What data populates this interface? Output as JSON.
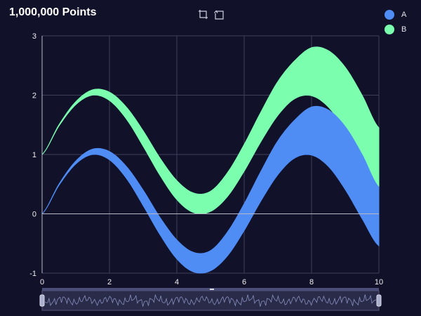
{
  "title": "1,000,000 Points",
  "toolbox": [
    {
      "icon": "zoom-select-icon"
    },
    {
      "icon": "zoom-reset-icon"
    }
  ],
  "legend": [
    {
      "label": "A",
      "color": "#4f8df5"
    },
    {
      "label": "B",
      "color": "#7bffaf"
    }
  ],
  "chart_data": {
    "type": "area",
    "title": "1,000,000 Points",
    "xlim": [
      0,
      10
    ],
    "ylim": [
      -1,
      3
    ],
    "x_ticks": [
      "0",
      "2",
      "4",
      "6",
      "8",
      "10"
    ],
    "y_ticks": [
      "-1",
      "0",
      "1",
      "2",
      "3"
    ],
    "grid": true,
    "legend_position": "top-right",
    "x": [
      0,
      0.5,
      1,
      1.5,
      2,
      2.5,
      3,
      3.5,
      4,
      4.5,
      5,
      5.5,
      6,
      6.5,
      7,
      7.5,
      8,
      8.5,
      9,
      9.5,
      10
    ],
    "series": [
      {
        "name": "A",
        "color": "#4f8df5",
        "lower": [
          0,
          0.48,
          0.84,
          1.0,
          0.91,
          0.6,
          0.14,
          -0.35,
          -0.76,
          -0.98,
          -0.96,
          -0.71,
          -0.28,
          0.22,
          0.66,
          0.94,
          0.99,
          0.8,
          0.41,
          -0.08,
          -0.54
        ],
        "upper": [
          0,
          0.5,
          0.89,
          1.09,
          1.05,
          0.8,
          0.4,
          -0.06,
          -0.44,
          -0.65,
          -0.62,
          -0.31,
          0.17,
          0.72,
          1.23,
          1.58,
          1.8,
          1.75,
          1.47,
          1.0,
          0.45
        ]
      },
      {
        "name": "B",
        "color": "#7bffaf",
        "lower": [
          1,
          1.48,
          1.84,
          2.0,
          1.91,
          1.6,
          1.14,
          0.65,
          0.24,
          0.02,
          0.04,
          0.29,
          0.72,
          1.22,
          1.66,
          1.94,
          1.99,
          1.8,
          1.41,
          0.92,
          0.46
        ],
        "upper": [
          1,
          1.5,
          1.89,
          2.09,
          2.05,
          1.8,
          1.4,
          0.94,
          0.56,
          0.35,
          0.38,
          0.69,
          1.17,
          1.72,
          2.23,
          2.58,
          2.8,
          2.75,
          2.47,
          2.0,
          1.45
        ]
      }
    ]
  },
  "slider": {
    "start_label": "0",
    "end_label": "10",
    "range": [
      0,
      10
    ]
  }
}
